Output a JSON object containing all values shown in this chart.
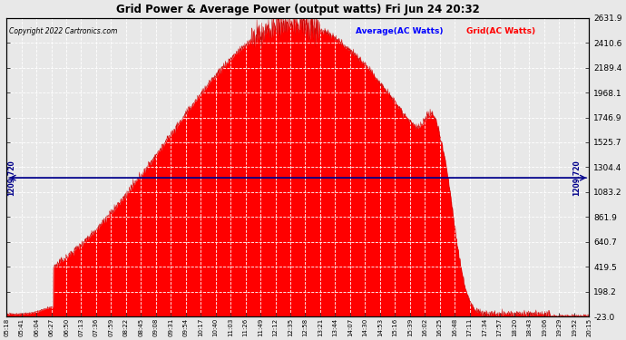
{
  "title": "Grid Power & Average Power (output watts) Fri Jun 24 20:32",
  "copyright": "Copyright 2022 Cartronics.com",
  "legend_average": "Average(AC Watts)",
  "legend_grid": "Grid(AC Watts)",
  "average_value": 1209.72,
  "average_label": "1209.720",
  "y_min": -23.0,
  "y_max": 2631.9,
  "y_ticks": [
    -23.0,
    198.2,
    419.5,
    640.7,
    861.9,
    1083.2,
    1304.4,
    1525.7,
    1746.9,
    1968.1,
    2189.4,
    2410.6,
    2631.9
  ],
  "x_start_min": 318,
  "x_end_min": 1215,
  "tick_interval_min": 23,
  "background_color": "#e8e8e8",
  "fill_color": "#ff0000",
  "line_color": "#cc0000",
  "average_line_color": "#00008b",
  "grid_color": "#ffffff",
  "title_color": "#000000",
  "copyright_color": "#000000",
  "legend_average_color": "#0000ff",
  "legend_grid_color": "#ff0000",
  "noon_min": 762,
  "sigma": 195,
  "peak": 2580,
  "drop_start_min": 990,
  "drop_sigma": 28,
  "n_points": 1800
}
